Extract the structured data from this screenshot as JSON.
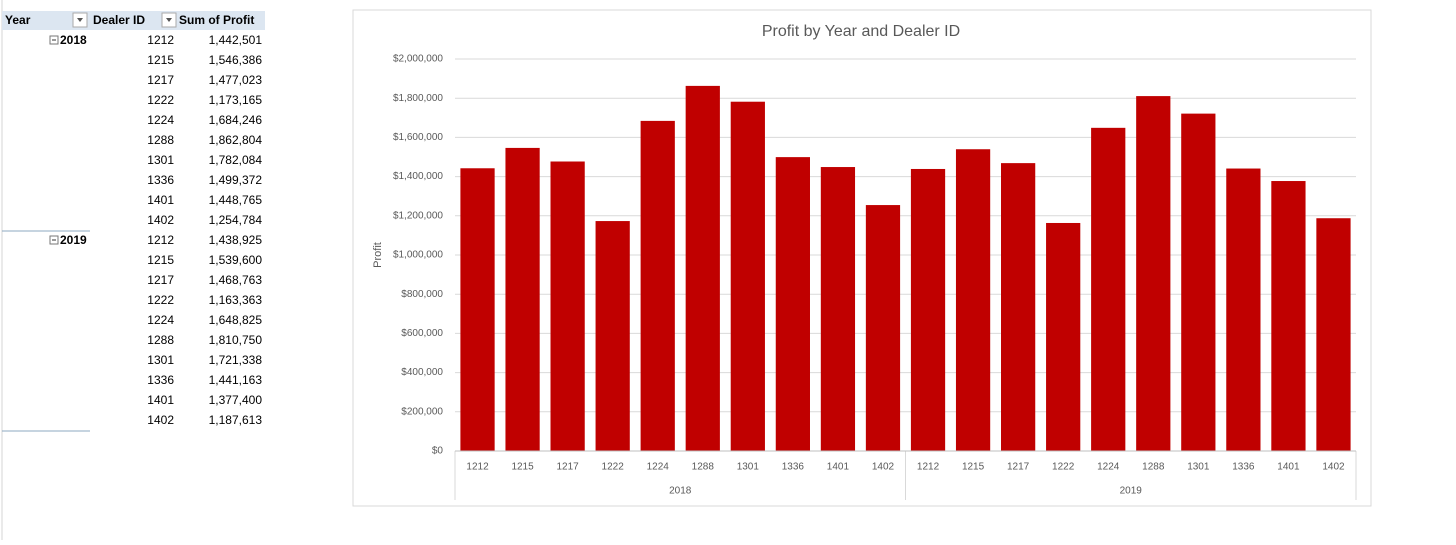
{
  "pivot_table": {
    "headers": [
      "Year",
      "Dealer ID",
      "Sum of Profit"
    ],
    "groups": [
      {
        "year": "2018",
        "rows": [
          [
            "1212",
            "1,442,501"
          ],
          [
            "1215",
            "1,546,386"
          ],
          [
            "1217",
            "1,477,023"
          ],
          [
            "1222",
            "1,173,165"
          ],
          [
            "1224",
            "1,684,246"
          ],
          [
            "1288",
            "1,862,804"
          ],
          [
            "1301",
            "1,782,084"
          ],
          [
            "1336",
            "1,499,372"
          ],
          [
            "1401",
            "1,448,765"
          ],
          [
            "1402",
            "1,254,784"
          ]
        ]
      },
      {
        "year": "2019",
        "rows": [
          [
            "1212",
            "1,438,925"
          ],
          [
            "1215",
            "1,539,600"
          ],
          [
            "1217",
            "1,468,763"
          ],
          [
            "1222",
            "1,163,363"
          ],
          [
            "1224",
            "1,648,825"
          ],
          [
            "1288",
            "1,810,750"
          ],
          [
            "1301",
            "1,721,338"
          ],
          [
            "1336",
            "1,441,163"
          ],
          [
            "1401",
            "1,377,400"
          ],
          [
            "1402",
            "1,187,613"
          ]
        ]
      }
    ]
  },
  "chart_data": {
    "type": "bar",
    "title": "Profit by Year and Dealer ID",
    "y_label": "Profit",
    "color": "#c00000",
    "grid": true,
    "groups": [
      {
        "name": "2018",
        "categories": [
          "1212",
          "1215",
          "1217",
          "1222",
          "1224",
          "1288",
          "1301",
          "1336",
          "1401",
          "1402"
        ]
      },
      {
        "name": "2019",
        "categories": [
          "1212",
          "1215",
          "1217",
          "1222",
          "1224",
          "1288",
          "1301",
          "1336",
          "1401",
          "1402"
        ]
      }
    ],
    "values": [
      1442501,
      1546386,
      1477023,
      1173165,
      1684246,
      1862804,
      1782084,
      1499372,
      1448765,
      1254784,
      1438925,
      1539600,
      1468763,
      1163363,
      1648825,
      1810750,
      1721338,
      1441163,
      1377400,
      1187613
    ],
    "ylim": [
      0,
      2000000
    ],
    "yticks": [
      {
        "value": 0,
        "label": "$0"
      },
      {
        "value": 200000,
        "label": "$200,000"
      },
      {
        "value": 400000,
        "label": "$400,000"
      },
      {
        "value": 600000,
        "label": "$600,000"
      },
      {
        "value": 800000,
        "label": "$800,000"
      },
      {
        "value": 1000000,
        "label": "$1,000,000"
      },
      {
        "value": 1200000,
        "label": "$1,200,000"
      },
      {
        "value": 1400000,
        "label": "$1,400,000"
      },
      {
        "value": 1600000,
        "label": "$1,600,000"
      },
      {
        "value": 1800000,
        "label": "$1,800,000"
      },
      {
        "value": 2000000,
        "label": "$2,000,000"
      }
    ]
  }
}
